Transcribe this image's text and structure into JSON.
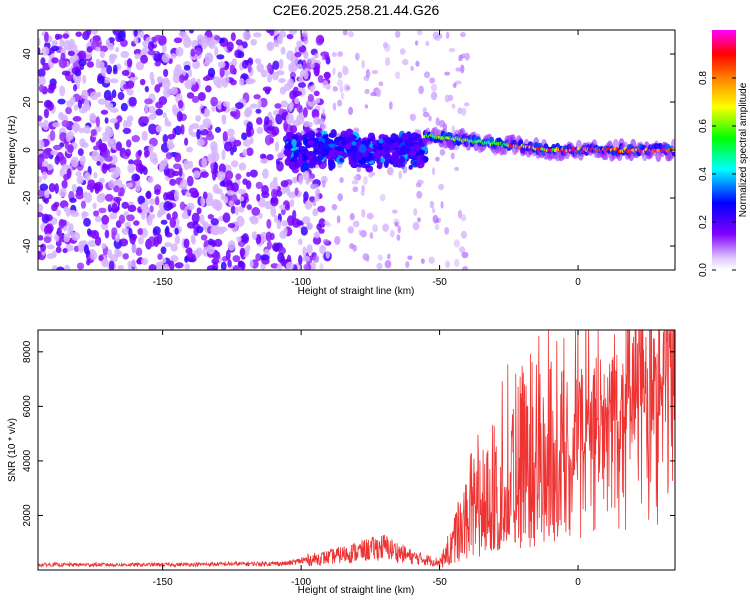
{
  "figure_title": "C2E6.2025.258.21.44.G26",
  "chart_data": [
    {
      "type": "heatmap",
      "title": "C2E6.2025.258.21.44.G26",
      "xlabel": "Height of straight line (km)",
      "ylabel": "Frequency (Hz)",
      "xlim": [
        -195,
        35
      ],
      "ylim": [
        -50,
        50
      ],
      "xticks": [
        -150,
        -100,
        -50,
        0
      ],
      "yticks": [
        -40,
        -20,
        0,
        20,
        40
      ],
      "x_tick_labels": [
        "-150",
        "-100",
        "-50",
        "0"
      ],
      "y_tick_labels": [
        "-40",
        "-20",
        "0",
        "20",
        "40"
      ],
      "colorbar": {
        "label": "Normalized spectral amplitude",
        "range": [
          0,
          1
        ],
        "ticks": [
          0.0,
          0.2,
          0.4,
          0.6,
          0.8
        ],
        "tick_labels": [
          "0.0",
          "0.2",
          "0.4",
          "0.6",
          "0.8"
        ],
        "colormap": [
          "#ffffff",
          "#8000ff",
          "#0000ff",
          "#00ffff",
          "#00ff00",
          "#ffff00",
          "#ff8000",
          "#ff0000",
          "#ff00ff"
        ]
      },
      "features": [
        {
          "region": "scattered noise",
          "x_range": [
            -195,
            -100
          ],
          "freq_range": [
            -50,
            50
          ],
          "amplitude": 0.1
        },
        {
          "region": "emerging signal",
          "x_range": [
            -105,
            -55
          ],
          "freq_center": 0,
          "freq_spread": 8,
          "amplitude": 0.3
        },
        {
          "region": "strong carrier",
          "x_range": [
            -55,
            35
          ],
          "freq_center_start": 6,
          "freq_center_end": 0,
          "amplitude": 0.9
        }
      ]
    },
    {
      "type": "line",
      "xlabel": "Height of straight line (km)",
      "ylabel": "SNR (10 * v/v)",
      "xlim": [
        -195,
        35
      ],
      "ylim": [
        0,
        8800
      ],
      "xticks": [
        -150,
        -100,
        -50,
        0
      ],
      "yticks": [
        2000,
        4000,
        6000,
        8000
      ],
      "x_tick_labels": [
        "-150",
        "-100",
        "-50",
        "0"
      ],
      "y_tick_labels": [
        "2000",
        "4000",
        "6000",
        "8000"
      ],
      "color": "#ee3333",
      "series": [
        {
          "name": "SNR",
          "x": [
            -195,
            -150,
            -105,
            -100,
            -90,
            -80,
            -70,
            -60,
            -50,
            -45,
            -40,
            -35,
            -30,
            -25,
            -20,
            -15,
            -10,
            -5,
            0,
            5,
            10,
            15,
            20,
            25,
            30,
            35
          ],
          "y": [
            200,
            200,
            250,
            350,
            500,
            700,
            900,
            500,
            300,
            1100,
            2200,
            2800,
            3600,
            4000,
            4600,
            4700,
            5000,
            5200,
            5600,
            5800,
            6400,
            6900,
            7400,
            7800,
            8100,
            8300
          ]
        }
      ]
    }
  ]
}
